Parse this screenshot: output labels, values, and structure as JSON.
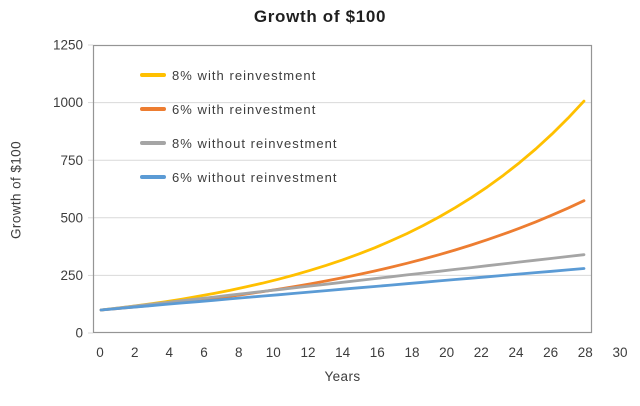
{
  "chart_data": {
    "type": "line",
    "title": "Growth of $100",
    "xlabel": "Years",
    "ylabel": "Growth of $100",
    "x": [
      0,
      1,
      2,
      3,
      4,
      5,
      6,
      7,
      8,
      9,
      10,
      11,
      12,
      13,
      14,
      15,
      16,
      17,
      18,
      19,
      20,
      21,
      22,
      23,
      24,
      25,
      26,
      27,
      28,
      29,
      30
    ],
    "x_tick_labels": [
      "0",
      "2",
      "4",
      "6",
      "8",
      "10",
      "12",
      "14",
      "16",
      "18",
      "20",
      "22",
      "24",
      "26",
      "28",
      "30"
    ],
    "y_ticks": [
      0,
      250,
      500,
      750,
      1000,
      1250
    ],
    "ylim": [
      0,
      1250
    ],
    "grid": "horizontal",
    "legend_position": "inside-top-left",
    "series": [
      {
        "name": "8% with reinvestment",
        "color": "#FFC000",
        "values": [
          100,
          108,
          116.6,
          126,
          136,
          146.9,
          158.7,
          171.4,
          185.1,
          199.9,
          215.9,
          233.2,
          251.8,
          272,
          293.7,
          317.2,
          342.6,
          370,
          399.6,
          431.6,
          466.1,
          503.4,
          543.7,
          587.1,
          634.1,
          684.8,
          739.6,
          798.8,
          862.7,
          931.7,
          1006.3
        ]
      },
      {
        "name": "6% with reinvestment",
        "color": "#ED7D31",
        "values": [
          100,
          106,
          112.4,
          119.1,
          126.2,
          133.8,
          141.9,
          150.4,
          159.4,
          169,
          179.1,
          189.8,
          201.2,
          213.3,
          226.1,
          239.7,
          254,
          269.3,
          285.4,
          302.6,
          320.7,
          340,
          360.4,
          382,
          404.9,
          429.2,
          454.9,
          482.2,
          511.2,
          541.8,
          574.3
        ]
      },
      {
        "name": "8% without reinvestment",
        "color": "#A5A5A5",
        "values": [
          100,
          108,
          116,
          124,
          132,
          140,
          148,
          156,
          164,
          172,
          180,
          188,
          196,
          204,
          212,
          220,
          228,
          236,
          244,
          252,
          260,
          268,
          276,
          284,
          292,
          300,
          308,
          316,
          324,
          332,
          340
        ]
      },
      {
        "name": "6% without reinvestment",
        "color": "#5B9BD5",
        "values": [
          100,
          106,
          112,
          118,
          124,
          130,
          136,
          142,
          148,
          154,
          160,
          166,
          172,
          178,
          184,
          190,
          196,
          202,
          208,
          214,
          220,
          226,
          232,
          238,
          244,
          250,
          256,
          262,
          268,
          274,
          280
        ]
      }
    ]
  },
  "colors": {
    "gridline": "#D9D9D9",
    "axis_border": "#959595",
    "tick_text": "#3d3d3d"
  }
}
